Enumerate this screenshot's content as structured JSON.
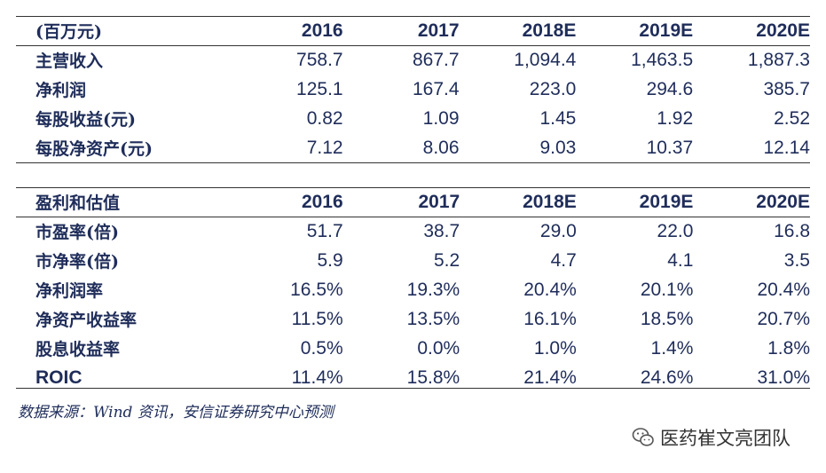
{
  "table1": {
    "header": [
      "(百万元)",
      "2016",
      "2017",
      "2018E",
      "2019E",
      "2020E"
    ],
    "rows": [
      [
        "主营收入",
        "758.7",
        "867.7",
        "1,094.4",
        "1,463.5",
        "1,887.3"
      ],
      [
        "净利润",
        "125.1",
        "167.4",
        "223.0",
        "294.6",
        "385.7"
      ],
      [
        "每股收益(元)",
        "0.82",
        "1.09",
        "1.45",
        "1.92",
        "2.52"
      ],
      [
        "每股净资产(元)",
        "7.12",
        "8.06",
        "9.03",
        "10.37",
        "12.14"
      ]
    ]
  },
  "table2": {
    "header": [
      "盈利和估值",
      "2016",
      "2017",
      "2018E",
      "2019E",
      "2020E"
    ],
    "rows": [
      [
        "市盈率(倍)",
        "51.7",
        "38.7",
        "29.0",
        "22.0",
        "16.8"
      ],
      [
        "市净率(倍)",
        "5.9",
        "5.2",
        "4.7",
        "4.1",
        "3.5"
      ],
      [
        "净利润率",
        "16.5%",
        "19.3%",
        "20.4%",
        "20.1%",
        "20.4%"
      ],
      [
        "净资产收益率",
        "11.5%",
        "13.5%",
        "16.1%",
        "18.5%",
        "20.7%"
      ],
      [
        "股息收益率",
        "0.5%",
        "0.0%",
        "1.0%",
        "1.4%",
        "1.8%"
      ],
      [
        "ROIC",
        "11.4%",
        "15.8%",
        "21.4%",
        "24.6%",
        "31.0%"
      ]
    ]
  },
  "source": "数据来源：Wind 资讯，安信证券研究中心预测",
  "watermark": {
    "icon": "wechat-icon",
    "text": "医药崔文亮团队"
  }
}
